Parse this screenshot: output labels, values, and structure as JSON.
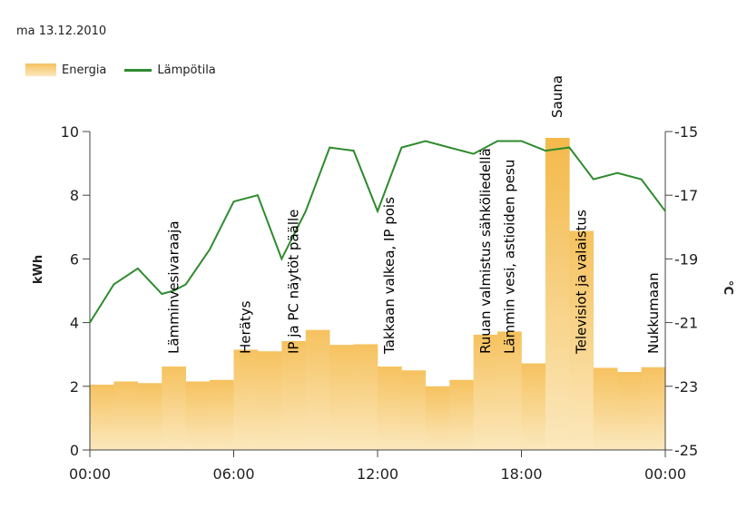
{
  "header": {
    "date": "ma 13.12.2010"
  },
  "chart_data": {
    "type": "bar",
    "title": "",
    "xlabel": "",
    "ylabel": "kWh",
    "y2label": "°C",
    "ylim": [
      0,
      10
    ],
    "y2lim": [
      -25,
      -15
    ],
    "x_ticks": [
      "00:00",
      "06:00",
      "12:00",
      "18:00",
      "00:00"
    ],
    "y_ticks": [
      "0",
      "2",
      "4",
      "6",
      "8",
      "10"
    ],
    "y2_ticks": [
      "-25",
      "-23",
      "-21",
      "-19",
      "-17",
      "-15"
    ],
    "colors": {
      "bar_top": "#f6c25f",
      "bar_bottom": "#fbe8bd",
      "line": "#2e8b2e",
      "sauna_bar": "#f4b94a"
    },
    "legend": [
      {
        "name": "Energia",
        "kind": "bar"
      },
      {
        "name": "Lämpötila",
        "kind": "line"
      }
    ],
    "series": [
      {
        "name": "Energia",
        "axis": "left",
        "values": [
          2.05,
          2.15,
          2.1,
          2.62,
          2.15,
          2.2,
          3.15,
          3.1,
          3.42,
          3.77,
          3.3,
          3.32,
          2.62,
          2.5,
          2.0,
          2.2,
          3.62,
          3.72,
          2.72,
          9.8,
          6.88,
          2.58,
          2.45,
          2.6
        ]
      },
      {
        "name": "Lämpötila",
        "axis": "right",
        "x": [
          0,
          1,
          2,
          3,
          3.5,
          4,
          5,
          6,
          7,
          8,
          9,
          10,
          11,
          12,
          13,
          14,
          15,
          16,
          17,
          18,
          19,
          20,
          21,
          22,
          23,
          24
        ],
        "values": [
          -21.0,
          -19.8,
          -19.3,
          -20.1,
          -20.0,
          -19.8,
          -18.7,
          -17.2,
          -17.0,
          -19.0,
          -17.5,
          -15.5,
          -15.6,
          -17.5,
          -15.5,
          -15.3,
          -15.5,
          -15.7,
          -15.3,
          -15.3,
          -15.6,
          -15.5,
          -16.5,
          -16.3,
          -16.5,
          -17.5
        ]
      }
    ],
    "annotations": [
      {
        "hour": 3.5,
        "text": "Lämminvesivaraaja"
      },
      {
        "hour": 6.5,
        "text": "Herätys"
      },
      {
        "hour": 8.5,
        "text": "IP ja PC näytöt päälle"
      },
      {
        "hour": 12.5,
        "text": "Takkaan valkea, IP pois"
      },
      {
        "hour": 16.5,
        "text": "Ruuan valmistus sähköliedellä"
      },
      {
        "hour": 17.5,
        "text": "Lämmin vesi, astioiden pesu"
      },
      {
        "hour": 20.5,
        "text": "Televisiot ja valaistus"
      },
      {
        "hour": 23.5,
        "text": "Nukkumaan"
      }
    ],
    "top_annotation": {
      "hour": 19.5,
      "text": "Sauna"
    }
  }
}
